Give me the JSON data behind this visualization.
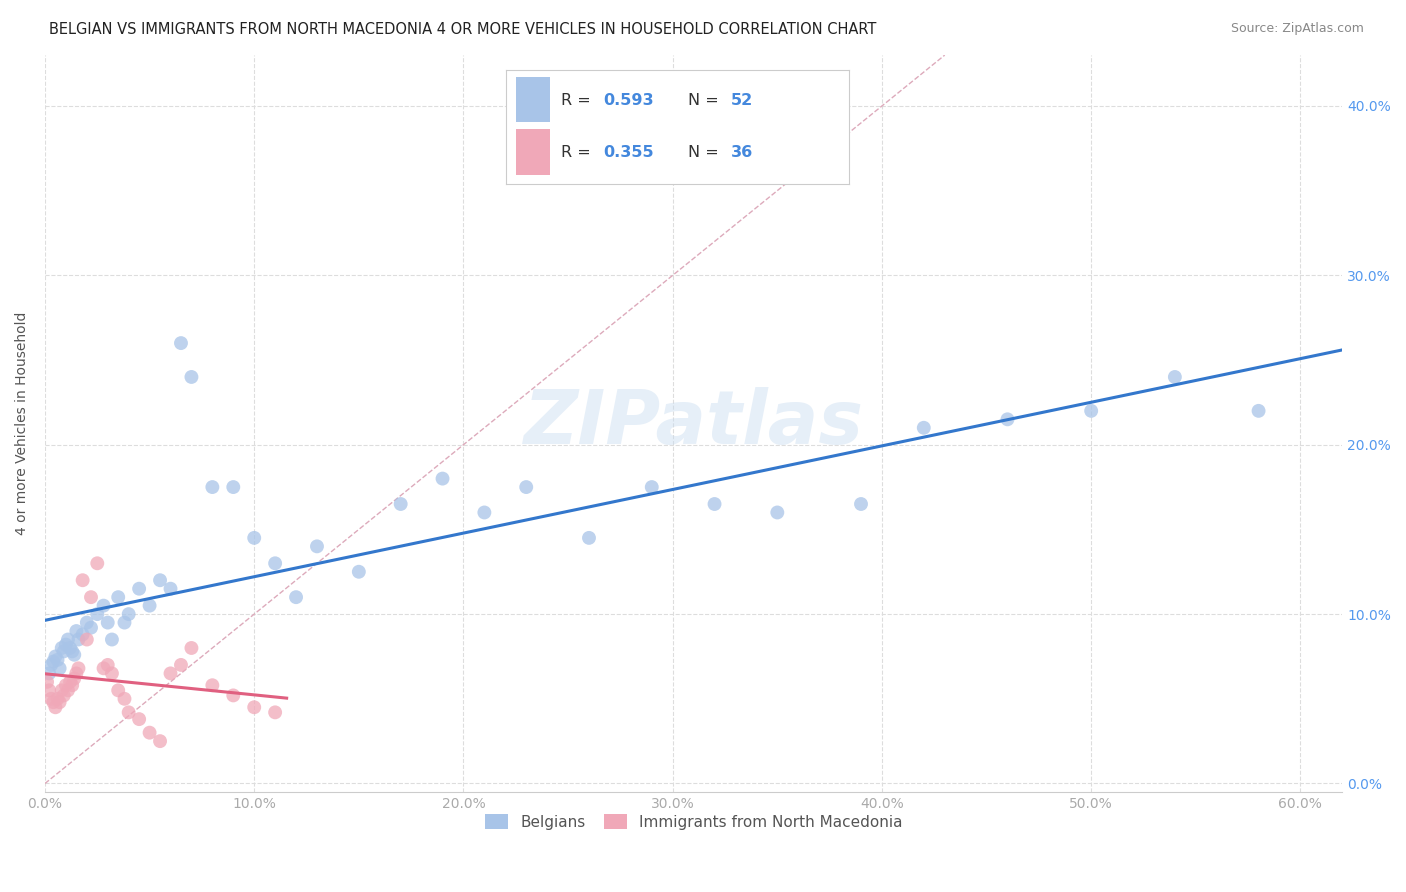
{
  "title": "BELGIAN VS IMMIGRANTS FROM NORTH MACEDONIA 4 OR MORE VEHICLES IN HOUSEHOLD CORRELATION CHART",
  "source": "Source: ZipAtlas.com",
  "ylabel": "4 or more Vehicles in Household",
  "xlim": [
    0.0,
    0.62
  ],
  "ylim": [
    -0.005,
    0.43
  ],
  "xticks": [
    0.0,
    0.1,
    0.2,
    0.3,
    0.4,
    0.5,
    0.6
  ],
  "yticks": [
    0.0,
    0.1,
    0.2,
    0.3,
    0.4
  ],
  "yticklabels_right": [
    "0.0%",
    "10.0%",
    "20.0%",
    "30.0%",
    "40.0%"
  ],
  "belgian_color": "#a8c4e8",
  "macedonian_color": "#f0a8b8",
  "belgian_line_color": "#3377cc",
  "macedonian_line_color": "#e06080",
  "diagonal_color": "#cccccc",
  "grid_color": "#dddddd",
  "R_belgian": 0.593,
  "N_belgian": 52,
  "R_macedonian": 0.355,
  "N_macedonian": 36,
  "watermark": "ZIPatlas",
  "belgian_scatter_x": [
    0.002,
    0.003,
    0.004,
    0.005,
    0.006,
    0.007,
    0.008,
    0.009,
    0.01,
    0.011,
    0.012,
    0.013,
    0.014,
    0.015,
    0.016,
    0.018,
    0.02,
    0.022,
    0.025,
    0.028,
    0.03,
    0.032,
    0.035,
    0.038,
    0.04,
    0.045,
    0.05,
    0.055,
    0.06,
    0.065,
    0.07,
    0.08,
    0.09,
    0.1,
    0.11,
    0.12,
    0.13,
    0.15,
    0.17,
    0.19,
    0.21,
    0.23,
    0.26,
    0.29,
    0.32,
    0.35,
    0.39,
    0.42,
    0.46,
    0.5,
    0.54,
    0.58
  ],
  "belgian_scatter_y": [
    0.065,
    0.07,
    0.072,
    0.075,
    0.073,
    0.068,
    0.08,
    0.078,
    0.082,
    0.085,
    0.08,
    0.078,
    0.076,
    0.09,
    0.085,
    0.088,
    0.095,
    0.092,
    0.1,
    0.105,
    0.095,
    0.085,
    0.11,
    0.095,
    0.1,
    0.115,
    0.105,
    0.12,
    0.115,
    0.26,
    0.24,
    0.175,
    0.175,
    0.145,
    0.13,
    0.11,
    0.14,
    0.125,
    0.165,
    0.18,
    0.16,
    0.175,
    0.145,
    0.175,
    0.165,
    0.16,
    0.165,
    0.21,
    0.215,
    0.22,
    0.24,
    0.22
  ],
  "macedonian_scatter_x": [
    0.001,
    0.002,
    0.003,
    0.004,
    0.005,
    0.006,
    0.007,
    0.008,
    0.009,
    0.01,
    0.011,
    0.012,
    0.013,
    0.014,
    0.015,
    0.016,
    0.018,
    0.02,
    0.022,
    0.025,
    0.028,
    0.03,
    0.032,
    0.035,
    0.038,
    0.04,
    0.045,
    0.05,
    0.055,
    0.06,
    0.065,
    0.07,
    0.08,
    0.09,
    0.1,
    0.11
  ],
  "macedonian_scatter_y": [
    0.06,
    0.055,
    0.05,
    0.048,
    0.045,
    0.05,
    0.048,
    0.055,
    0.052,
    0.058,
    0.055,
    0.06,
    0.058,
    0.062,
    0.065,
    0.068,
    0.12,
    0.085,
    0.11,
    0.13,
    0.068,
    0.07,
    0.065,
    0.055,
    0.05,
    0.042,
    0.038,
    0.03,
    0.025,
    0.065,
    0.07,
    0.08,
    0.058,
    0.052,
    0.045,
    0.042
  ],
  "legend_R_color": "#4488dd",
  "legend_N_color": "#4488dd",
  "legend_text_color": "#333333"
}
